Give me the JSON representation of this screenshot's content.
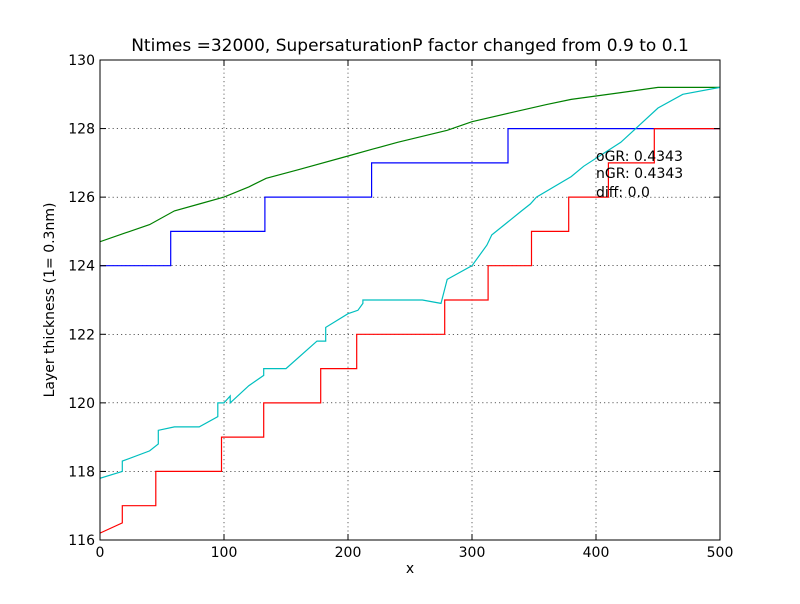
{
  "chart_data": {
    "type": "line",
    "title": "Ntimes =32000, SupersaturationP factor changed from 0.9 to 0.1",
    "xlabel": "x",
    "ylabel": "Layer thickness (1= 0.3nm)",
    "xlim": [
      0,
      500
    ],
    "ylim": [
      116,
      130
    ],
    "xticks": [
      0,
      100,
      200,
      300,
      400,
      500
    ],
    "yticks": [
      116,
      118,
      120,
      122,
      124,
      126,
      128,
      130
    ],
    "grid": true,
    "annotations": [
      "oGR: 0.4343",
      "nGR: 0.4343",
      "diff: 0.0"
    ],
    "series": [
      {
        "color": "#008000",
        "x": [
          0,
          20,
          40,
          60,
          80,
          100,
          120,
          134,
          160,
          200,
          220,
          240,
          280,
          300,
          330,
          360,
          380,
          400,
          420,
          450,
          500
        ],
        "y": [
          124.7,
          124.95,
          125.2,
          125.6,
          125.8,
          126.0,
          126.3,
          126.55,
          126.8,
          127.2,
          127.4,
          127.6,
          127.95,
          128.2,
          128.45,
          128.7,
          128.85,
          128.95,
          129.05,
          129.2,
          129.2
        ]
      },
      {
        "color": "#0000ff",
        "x": [
          0,
          57,
          57,
          133,
          133,
          219,
          219,
          329,
          329,
          500
        ],
        "y": [
          124,
          124,
          125,
          125,
          126,
          126,
          127,
          127,
          128,
          128
        ]
      },
      {
        "color": "#00bfbf",
        "x": [
          0,
          18,
          18,
          40,
          47,
          47,
          60,
          80,
          95,
          95,
          100,
          105,
          105,
          120,
          132,
          132,
          150,
          175,
          182,
          182,
          200,
          208,
          212,
          212,
          240,
          260,
          275,
          280,
          300,
          312,
          316,
          340,
          347,
          352,
          380,
          390,
          420,
          450,
          470,
          500
        ],
        "y": [
          117.8,
          118.0,
          118.3,
          118.6,
          118.8,
          119.2,
          119.3,
          119.3,
          119.6,
          120.0,
          120.0,
          120.2,
          120.0,
          120.5,
          120.8,
          121.0,
          121.0,
          121.8,
          121.8,
          122.2,
          122.6,
          122.7,
          122.9,
          123.0,
          123.0,
          123.0,
          122.9,
          123.6,
          124.0,
          124.6,
          124.9,
          125.6,
          125.8,
          126.0,
          126.6,
          126.9,
          127.6,
          128.6,
          129.0,
          129.2
        ]
      },
      {
        "color": "#ff0000",
        "x": [
          0,
          18,
          18,
          45,
          45,
          98,
          98,
          132,
          132,
          178,
          178,
          207,
          207,
          278,
          278,
          313,
          313,
          348,
          348,
          378,
          378,
          410,
          410,
          447,
          447,
          500
        ],
        "y": [
          116.2,
          116.5,
          117,
          117,
          118,
          118,
          119,
          119,
          120,
          120,
          121,
          121,
          122,
          122,
          123,
          123,
          124,
          124,
          125,
          125,
          126,
          126,
          127,
          127,
          128,
          128
        ]
      }
    ]
  }
}
